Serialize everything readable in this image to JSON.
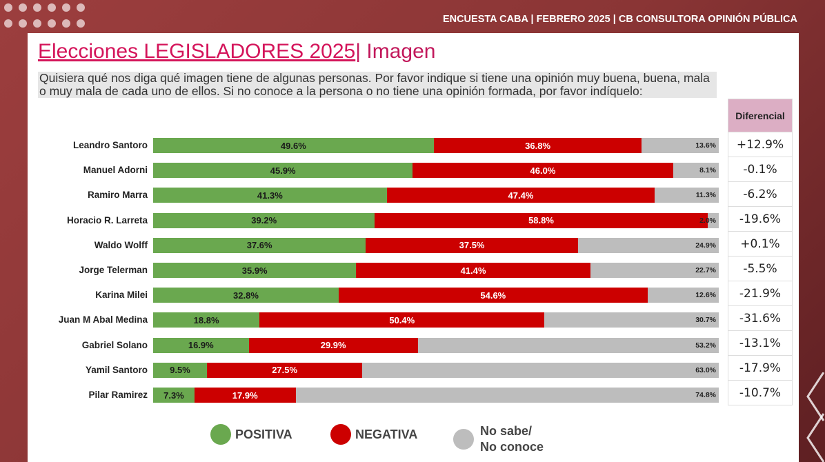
{
  "header": "ENCUESTA CABA | FEBRERO 2025 | CB CONSULTORA OPINIÓN PÚBLICA",
  "title_main": "Elecciones LEGISLADORES 2025",
  "title_rest": "| Imagen",
  "question": "Quisiera qué nos diga qué imagen tiene de algunas personas. Por favor indique si tiene una opinión muy buena, buena, mala o muy mala de cada uno de ellos. Si no conoce a la persona o no tiene una opinión formada, por favor indíquelo:",
  "colors": {
    "positiva": "#6aa84f",
    "negativa": "#cc0000",
    "no_sabe": "#bdbdbd",
    "title": "#d4145a",
    "diferencial_header": "#dcaec4"
  },
  "chart_data": {
    "type": "bar",
    "orientation": "horizontal",
    "stacked": true,
    "categories": [
      "Leandro Santoro",
      "Manuel Adorni",
      "Ramiro Marra",
      "Horacio R. Larreta",
      "Waldo Wolff",
      "Jorge Telerman",
      "Karina Milei",
      "Juan M Abal Medina",
      "Gabriel Solano",
      "Yamil Santoro",
      "Pilar Ramirez"
    ],
    "series": [
      {
        "name": "POSITIVA",
        "values": [
          49.6,
          45.9,
          41.3,
          39.2,
          37.6,
          35.9,
          32.8,
          18.8,
          16.9,
          9.5,
          7.3
        ],
        "labels": [
          "49.6%",
          "45.9%",
          "41.3%",
          "39.2%",
          "37.6%",
          "35.9%",
          "32.8%",
          "18.8%",
          "16.9%",
          "9.5%",
          "7.3%"
        ]
      },
      {
        "name": "NEGATIVA",
        "values": [
          36.8,
          46.0,
          47.4,
          58.8,
          37.5,
          41.4,
          54.6,
          50.4,
          29.9,
          27.5,
          17.9
        ],
        "labels": [
          "36.8%",
          "46.0%",
          "47.4%",
          "58.8%",
          "37.5%",
          "41.4%",
          "54.6%",
          "50.4%",
          "29.9%",
          "27.5%",
          "17.9%"
        ]
      },
      {
        "name": "No sabe/ No conoce",
        "values": [
          13.6,
          8.1,
          11.3,
          2.0,
          24.9,
          22.7,
          12.6,
          30.7,
          53.2,
          63.0,
          74.8
        ],
        "labels": [
          "13.6%",
          "8.1%",
          "11.3%",
          "2.0%",
          "24.9%",
          "22.7%",
          "12.6%",
          "30.7%",
          "53.2%",
          "63.0%",
          "74.8%"
        ]
      }
    ],
    "xlim": [
      0,
      100
    ],
    "legend_position": "bottom",
    "grid": false
  },
  "diferencial": {
    "header": "Diferencial",
    "values": [
      "+12.9%",
      "-0.1%",
      "-6.2%",
      "-19.6%",
      "+0.1%",
      "-5.5%",
      "-21.9%",
      "-31.6%",
      "-13.1%",
      "-17.9%",
      "-10.7%"
    ]
  },
  "legend": {
    "positiva": "POSITIVA",
    "negativa": "NEGATIVA",
    "no_sabe_1": "No sabe/",
    "no_sabe_2": "No conoce"
  }
}
